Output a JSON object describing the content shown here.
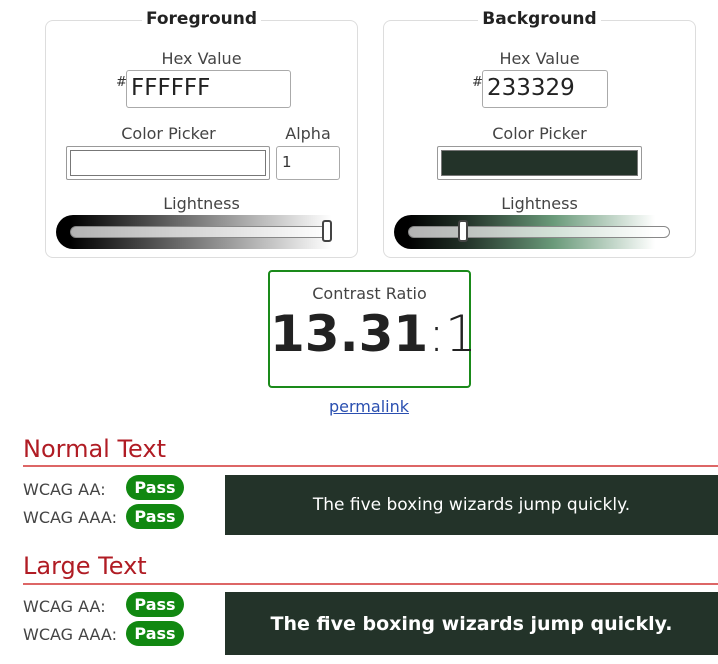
{
  "foreground": {
    "title": "Foreground",
    "hex_label": "Hex Value",
    "hash": "#",
    "hex_value": "FFFFFF",
    "picker_label": "Color Picker",
    "color": "#FFFFFF",
    "alpha_label": "Alpha",
    "alpha_value": "1",
    "lightness_label": "Lightness",
    "lightness_percent": 100
  },
  "background": {
    "title": "Background",
    "hex_label": "Hex Value",
    "hash": "#",
    "hex_value": "233329",
    "picker_label": "Color Picker",
    "color": "#233329",
    "lightness_label": "Lightness",
    "lightness_percent": 20
  },
  "contrast": {
    "label": "Contrast Ratio",
    "value": "13.31",
    "suffix": ":1",
    "permalink": "permalink"
  },
  "normal": {
    "heading": "Normal Text",
    "aa_label": "WCAG AA:",
    "aa_result": "Pass",
    "aaa_label": "WCAG AAA:",
    "aaa_result": "Pass",
    "sample": "The five boxing wizards jump quickly."
  },
  "large": {
    "heading": "Large Text",
    "aa_label": "WCAG AA:",
    "aa_result": "Pass",
    "aaa_label": "WCAG AAA:",
    "aaa_result": "Pass",
    "sample": "The five boxing wizards jump quickly."
  }
}
